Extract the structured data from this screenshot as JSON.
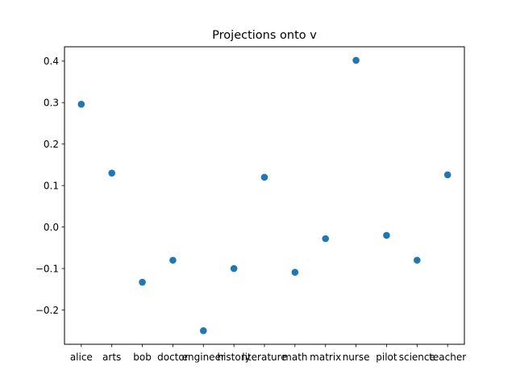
{
  "chart_data": {
    "type": "scatter",
    "title": "Projections onto v",
    "xlabel": "",
    "ylabel": "",
    "categories": [
      "alice",
      "arts",
      "bob",
      "doctor",
      "engineer",
      "history",
      "literature",
      "math",
      "matrix",
      "nurse",
      "pilot",
      "science",
      "teacher"
    ],
    "values": [
      0.296,
      0.13,
      -0.133,
      -0.08,
      -0.25,
      -0.1,
      0.12,
      -0.109,
      -0.028,
      0.402,
      -0.02,
      -0.08,
      0.126
    ],
    "yticks": [
      -0.2,
      -0.1,
      0.0,
      0.1,
      0.2,
      0.3,
      0.4
    ],
    "ytick_labels": [
      "−0.2",
      "−0.1",
      "0.0",
      "0.1",
      "0.2",
      "0.3",
      "0.4"
    ],
    "ylim": [
      -0.2826,
      0.4346
    ],
    "grid": false,
    "color": "#1f77b4"
  }
}
